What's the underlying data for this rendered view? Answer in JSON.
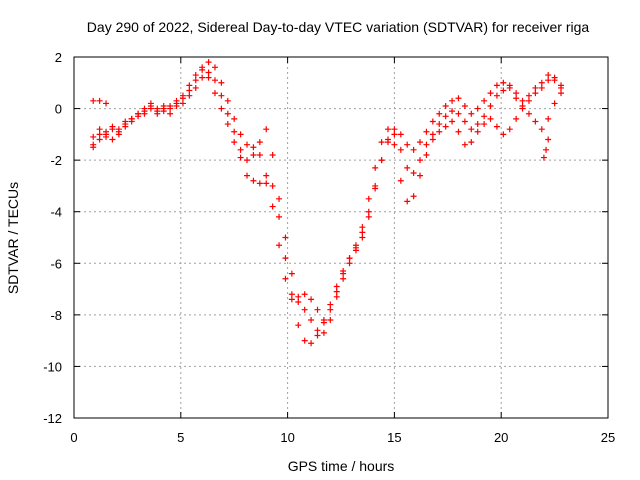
{
  "chart_data": {
    "type": "scatter",
    "title": "Day 290 of 2022, Sidereal Day-to-day VTEC variation (SDTVAR) for receiver riga",
    "xlabel": "GPS time / hours",
    "ylabel": "SDTVAR / TECUs",
    "xlim": [
      0,
      25
    ],
    "ylim": [
      -12,
      2
    ],
    "xticks": [
      0,
      5,
      10,
      15,
      20,
      25
    ],
    "yticks": [
      -12,
      -10,
      -8,
      -6,
      -4,
      -2,
      0,
      2
    ],
    "grid": true,
    "marker": "+",
    "color": "#ff0000",
    "series": [
      {
        "x": [
          0.9,
          1.2,
          1.5,
          1.8,
          2.1,
          2.4,
          2.7,
          3.0,
          3.3,
          3.6,
          3.9,
          4.2,
          4.5,
          4.8,
          5.1,
          5.4,
          5.7,
          6.0,
          6.3,
          6.6,
          6.9,
          7.2,
          7.5,
          7.8,
          8.1,
          8.4,
          8.7,
          9.0,
          9.3,
          9.6,
          9.9,
          10.2,
          10.5,
          10.8,
          11.1,
          11.4,
          11.7,
          12.0,
          12.3,
          12.6,
          12.9,
          13.2,
          13.5,
          13.8,
          14.1,
          14.4,
          14.7,
          15.0,
          15.3,
          15.6,
          15.9,
          16.2,
          16.5,
          16.8,
          17.1,
          17.4,
          17.7,
          18.0,
          18.3,
          18.6,
          18.9,
          19.2,
          19.5,
          19.8,
          20.1,
          20.4,
          20.7,
          21.0,
          21.3,
          21.6,
          21.9,
          22.2,
          22.5,
          22.8
        ],
        "y": [
          -1.5,
          -1.0,
          -1.1,
          -0.8,
          -1.0,
          -0.6,
          -0.4,
          -0.2,
          -0.1,
          0.1,
          -0.1,
          0.0,
          0.1,
          0.2,
          0.4,
          0.7,
          1.1,
          1.5,
          1.2,
          0.6,
          0.0,
          -0.6,
          -1.3,
          -1.9,
          -2.6,
          -2.8,
          -2.9,
          -2.9,
          -3.0,
          -4.2,
          -5.8,
          -7.2,
          -8.4,
          -9.0,
          -9.1,
          -8.8,
          -8.3,
          -7.6,
          -6.9,
          -6.3,
          -5.8,
          -5.4,
          -5.0,
          -4.2,
          -3.1,
          -2.0,
          -1.3,
          -1.0,
          -1.6,
          -2.3,
          -2.5,
          -2.0,
          -1.4,
          -1.0,
          -0.6,
          -0.3,
          -0.1,
          -0.2,
          -0.5,
          -0.8,
          -0.6,
          -0.3,
          0.1,
          0.5,
          0.7,
          0.9,
          0.6,
          0.3,
          0.5,
          0.8,
          1.0,
          1.3,
          1.1,
          0.8
        ]
      },
      {
        "x": [
          0.9,
          1.2,
          1.5,
          1.8,
          2.1,
          2.4,
          2.7,
          3.0,
          3.3,
          3.6,
          3.9,
          4.2,
          4.5,
          4.8,
          5.1,
          5.4,
          5.7,
          6.0,
          6.3,
          6.6,
          6.9,
          7.2,
          7.5,
          7.8,
          8.1,
          8.4,
          8.7,
          9.0,
          9.3,
          9.6,
          9.9,
          10.2,
          10.5,
          10.8,
          11.1,
          11.4,
          11.7,
          12.0,
          12.3,
          12.6,
          12.9,
          13.2,
          13.5,
          13.8,
          14.1,
          14.4,
          14.7,
          15.0,
          15.3,
          15.6,
          15.9,
          16.2,
          16.5,
          16.8,
          17.1,
          17.4,
          17.7,
          18.0,
          18.3,
          18.6,
          18.9,
          19.2,
          19.5,
          19.8,
          20.1,
          20.4,
          20.7,
          21.0,
          21.3,
          21.6,
          21.9,
          22.2,
          22.5,
          22.8
        ],
        "y": [
          -1.1,
          -0.8,
          -0.9,
          -0.7,
          -0.8,
          -0.5,
          -0.4,
          -0.2,
          0.0,
          0.2,
          0.0,
          0.1,
          0.0,
          0.3,
          0.5,
          0.9,
          1.3,
          1.6,
          1.8,
          1.6,
          1.0,
          0.3,
          -0.4,
          -1.0,
          -1.4,
          -1.5,
          -1.8,
          -2.6,
          -3.8,
          -5.3,
          -6.6,
          -7.4,
          -7.5,
          -7.2,
          -7.4,
          -7.8,
          -8.2,
          -7.8,
          -7.1,
          -6.4,
          -5.8,
          -5.3,
          -4.8,
          -4.0,
          -3.0,
          -2.0,
          -1.2,
          -0.8,
          -1.0,
          -1.4,
          -1.6,
          -1.3,
          -0.9,
          -0.5,
          -0.2,
          0.1,
          0.3,
          0.4,
          0.1,
          -0.2,
          0.0,
          0.3,
          0.6,
          0.9,
          1.0,
          0.8,
          0.4,
          0.1,
          0.3,
          0.6,
          0.8,
          1.1,
          1.2,
          0.9
        ]
      },
      {
        "x": [
          0.9,
          1.2,
          1.5,
          1.8,
          2.1,
          2.4,
          2.7,
          3.0,
          3.3,
          3.6,
          3.9,
          4.2,
          4.5,
          4.8,
          5.1,
          5.4,
          5.7,
          6.0,
          6.3,
          6.6,
          6.9,
          7.2,
          7.5,
          7.8,
          8.1,
          8.4,
          8.7,
          9.0,
          9.3,
          9.6,
          9.9,
          10.2,
          10.5,
          10.8,
          11.1,
          11.4,
          11.7,
          12.0,
          12.3,
          12.6,
          12.9,
          13.2,
          13.5,
          13.8,
          14.1,
          14.4,
          14.7,
          15.0,
          15.3,
          15.6,
          15.9,
          16.2,
          16.5,
          16.8,
          17.1,
          17.4,
          17.7,
          18.0,
          18.3,
          18.6,
          18.9,
          19.2,
          19.5,
          19.8,
          20.1,
          20.4,
          20.7,
          21.0,
          21.3,
          21.6,
          21.9,
          22.2,
          22.5,
          22.8
        ],
        "y": [
          -1.4,
          -1.2,
          -1.0,
          -1.2,
          -0.9,
          -0.7,
          -0.5,
          -0.3,
          -0.2,
          0.0,
          -0.2,
          -0.1,
          -0.2,
          0.1,
          0.2,
          0.5,
          0.8,
          1.2,
          1.4,
          1.1,
          0.5,
          -0.2,
          -0.9,
          -1.6,
          -2.0,
          -1.8,
          -1.3,
          -0.8,
          -1.8,
          -3.5,
          -5.0,
          -6.4,
          -7.3,
          -7.8,
          -8.2,
          -8.6,
          -8.7,
          -8.2,
          -7.3,
          -6.6,
          -6.0,
          -5.5,
          -4.6,
          -3.5,
          -2.3,
          -1.3,
          -0.8,
          -1.4,
          -2.8,
          -3.6,
          -3.4,
          -2.6,
          -1.8,
          -1.2,
          -0.9,
          -0.7,
          -0.5,
          -0.9,
          -1.4,
          -1.3,
          -0.9,
          -0.6,
          -0.4,
          -0.7,
          -1.0,
          -0.8,
          -0.4,
          0.0,
          -0.2,
          -0.5,
          -0.8,
          -0.4,
          0.2,
          0.6
        ]
      },
      {
        "x": [
          0.9,
          1.2,
          1.5
        ],
        "y": [
          0.3,
          0.3,
          0.2
        ]
      },
      {
        "x": [
          22.0,
          22.1,
          22.2
        ],
        "y": [
          -1.9,
          -1.6,
          -1.2
        ]
      }
    ]
  }
}
